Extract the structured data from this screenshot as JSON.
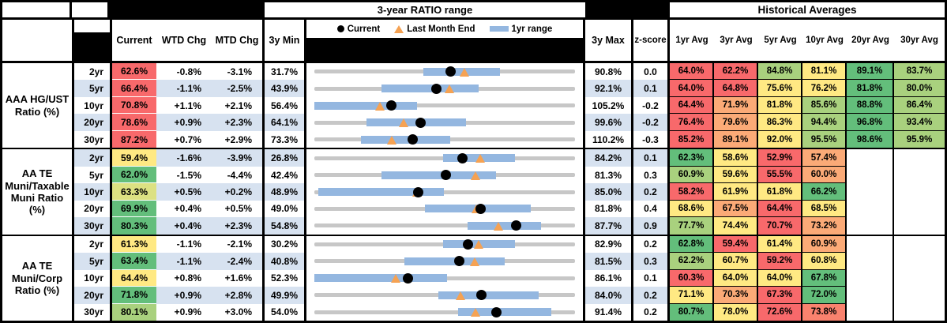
{
  "colors": {
    "rd": "#F8696B",
    "sa": "#F9826E",
    "or": "#FBAA77",
    "yl": "#FFE983",
    "yg": "#DCE182",
    "lg": "#A9D17E",
    "gr": "#63BE7B",
    "row_alt": "#D7E2F0",
    "bar_blue": "#94B7E0",
    "track_gray": "#C7C7C7",
    "marker_orange": "#F5A253"
  },
  "chart_data": {
    "type": "range-bullet-table",
    "range_header": "3-year RATIO range",
    "hist_header": "Historical Averages",
    "columns": [
      "Current",
      "WTD Chg",
      "MTD Chg",
      "3y Min",
      "3y Max",
      "z-score"
    ],
    "avg_columns": [
      "1yr Avg",
      "3yr Avg",
      "5yr Avg",
      "10yr Avg",
      "20yr Avg",
      "30yr Avg"
    ],
    "legend": {
      "current": "Current",
      "last_month": "Last Month End",
      "range": "1yr range"
    },
    "groups": [
      {
        "label_lines": [
          "AAA HG/UST",
          "Ratio (%)"
        ],
        "rows": [
          {
            "tenor": "2yr",
            "current": 62.6,
            "cc": "rd",
            "wtd": "-0.8%",
            "mtd": "-3.1%",
            "min": 31.7,
            "max": 90.8,
            "z": "0.0",
            "lme": 65.7,
            "bar": [
              56.5,
              73.7
            ],
            "avgs": [
              [
                64.0,
                "rd"
              ],
              [
                62.2,
                "rd"
              ],
              [
                84.8,
                "lg"
              ],
              [
                81.1,
                "yl"
              ],
              [
                89.1,
                "gr"
              ],
              [
                83.7,
                "lg"
              ]
            ]
          },
          {
            "tenor": "5yr",
            "current": 66.4,
            "cc": "rd",
            "wtd": "-1.1%",
            "mtd": "-2.5%",
            "min": 43.9,
            "max": 92.1,
            "z": "0.1",
            "lme": 68.9,
            "bar": [
              56.3,
              74.3
            ],
            "avgs": [
              [
                64.0,
                "rd"
              ],
              [
                64.8,
                "rd"
              ],
              [
                75.6,
                "yl"
              ],
              [
                76.2,
                "yl"
              ],
              [
                81.8,
                "gr"
              ],
              [
                80.0,
                "lg"
              ]
            ]
          },
          {
            "tenor": "10yr",
            "current": 70.8,
            "cc": "rd",
            "wtd": "+1.1%",
            "mtd": "+2.1%",
            "min": 56.4,
            "max": 105.2,
            "z": "-0.2",
            "lme": 68.7,
            "bar": [
              56.4,
              75.6
            ],
            "avgs": [
              [
                64.4,
                "rd"
              ],
              [
                71.9,
                "or"
              ],
              [
                81.8,
                "yl"
              ],
              [
                85.6,
                "lg"
              ],
              [
                88.8,
                "gr"
              ],
              [
                86.4,
                "lg"
              ]
            ]
          },
          {
            "tenor": "20yr",
            "current": 78.6,
            "cc": "rd",
            "wtd": "+0.9%",
            "mtd": "+2.3%",
            "min": 64.1,
            "max": 99.6,
            "z": "-0.2",
            "lme": 76.3,
            "bar": [
              71.2,
              84.8
            ],
            "avgs": [
              [
                76.4,
                "rd"
              ],
              [
                79.6,
                "or"
              ],
              [
                86.3,
                "yl"
              ],
              [
                94.4,
                "lg"
              ],
              [
                96.8,
                "gr"
              ],
              [
                93.4,
                "lg"
              ]
            ]
          },
          {
            "tenor": "30yr",
            "current": 87.2,
            "cc": "rd",
            "wtd": "+0.7%",
            "mtd": "+2.9%",
            "min": 73.3,
            "max": 110.2,
            "z": "-0.3",
            "lme": 84.3,
            "bar": [
              79.9,
              92.5
            ],
            "avgs": [
              [
                85.2,
                "rd"
              ],
              [
                89.1,
                "or"
              ],
              [
                92.0,
                "yl"
              ],
              [
                95.5,
                "lg"
              ],
              [
                98.6,
                "gr"
              ],
              [
                95.9,
                "lg"
              ]
            ]
          }
        ]
      },
      {
        "label_lines": [
          "AA TE",
          "Muni/Taxable",
          "Muni Ratio",
          "(%)"
        ],
        "rows": [
          {
            "tenor": "2yr",
            "current": 59.4,
            "cc": "yl",
            "wtd": "-1.6%",
            "mtd": "-3.9%",
            "min": 26.8,
            "max": 84.2,
            "z": "0.1",
            "lme": 63.3,
            "bar": [
              55.2,
              70.9
            ],
            "avgs": [
              [
                62.3,
                "gr"
              ],
              [
                58.6,
                "yl"
              ],
              [
                52.9,
                "rd"
              ],
              [
                57.4,
                "or"
              ],
              null,
              null
            ]
          },
          {
            "tenor": "5yr",
            "current": 62.0,
            "cc": "gr",
            "wtd": "-1.5%",
            "mtd": "-4.4%",
            "min": 42.4,
            "max": 81.3,
            "z": "0.3",
            "lme": 66.4,
            "bar": [
              52.4,
              69.5
            ],
            "avgs": [
              [
                60.9,
                "lg"
              ],
              [
                59.6,
                "yl"
              ],
              [
                55.5,
                "rd"
              ],
              [
                60.0,
                "or"
              ],
              null,
              null
            ]
          },
          {
            "tenor": "10yr",
            "current": 63.3,
            "cc": "yg",
            "wtd": "+0.5%",
            "mtd": "+0.2%",
            "min": 48.9,
            "max": 85.0,
            "z": "0.2",
            "lme": 63.1,
            "bar": [
              49.4,
              66.8
            ],
            "avgs": [
              [
                58.2,
                "rd"
              ],
              [
                61.9,
                "yl"
              ],
              [
                61.8,
                "yl"
              ],
              [
                66.2,
                "gr"
              ],
              null,
              null
            ]
          },
          {
            "tenor": "20yr",
            "current": 69.9,
            "cc": "gr",
            "wtd": "+0.4%",
            "mtd": "+0.5%",
            "min": 49.0,
            "max": 81.8,
            "z": "0.4",
            "lme": 69.4,
            "bar": [
              62.9,
              76.2
            ],
            "avgs": [
              [
                68.6,
                "yl"
              ],
              [
                67.5,
                "or"
              ],
              [
                64.4,
                "rd"
              ],
              [
                68.5,
                "yl"
              ],
              null,
              null
            ]
          },
          {
            "tenor": "30yr",
            "current": 80.3,
            "cc": "gr",
            "wtd": "+0.4%",
            "mtd": "+2.3%",
            "min": 54.8,
            "max": 87.7,
            "z": "0.9",
            "lme": 78.0,
            "bar": [
              74.1,
              83.4
            ],
            "avgs": [
              [
                77.7,
                "lg"
              ],
              [
                74.4,
                "yl"
              ],
              [
                70.7,
                "rd"
              ],
              [
                73.2,
                "or"
              ],
              null,
              null
            ]
          }
        ]
      },
      {
        "label_lines": [
          "AA TE",
          "Muni/Corp",
          "Ratio (%)"
        ],
        "rows": [
          {
            "tenor": "2yr",
            "current": 61.3,
            "cc": "yl",
            "wtd": "-1.1%",
            "mtd": "-2.1%",
            "min": 30.2,
            "max": 82.9,
            "z": "0.2",
            "lme": 63.4,
            "bar": [
              56.3,
              70.7
            ],
            "avgs": [
              [
                62.8,
                "gr"
              ],
              [
                59.4,
                "rd"
              ],
              [
                61.4,
                "yl"
              ],
              [
                60.9,
                "or"
              ],
              null,
              null
            ]
          },
          {
            "tenor": "5yr",
            "current": 63.4,
            "cc": "gr",
            "wtd": "-1.1%",
            "mtd": "-2.4%",
            "min": 40.8,
            "max": 81.5,
            "z": "0.3",
            "lme": 65.8,
            "bar": [
              54.8,
              70.5
            ],
            "avgs": [
              [
                62.2,
                "lg"
              ],
              [
                60.7,
                "yl"
              ],
              [
                59.2,
                "rd"
              ],
              [
                60.8,
                "yl"
              ],
              null,
              null
            ]
          },
          {
            "tenor": "10yr",
            "current": 64.4,
            "cc": "yl",
            "wtd": "+0.8%",
            "mtd": "+1.6%",
            "min": 52.3,
            "max": 86.1,
            "z": "0.1",
            "lme": 62.8,
            "bar": [
              52.3,
              69.5
            ],
            "avgs": [
              [
                60.3,
                "rd"
              ],
              [
                64.0,
                "yl"
              ],
              [
                64.0,
                "yl"
              ],
              [
                67.8,
                "gr"
              ],
              null,
              null
            ]
          },
          {
            "tenor": "20yr",
            "current": 71.8,
            "cc": "gr",
            "wtd": "+0.9%",
            "mtd": "+2.8%",
            "min": 49.9,
            "max": 84.0,
            "z": "0.2",
            "lme": 69.0,
            "bar": [
              66.1,
              79.2
            ],
            "avgs": [
              [
                71.1,
                "yl"
              ],
              [
                70.3,
                "or"
              ],
              [
                67.3,
                "rd"
              ],
              [
                72.0,
                "gr"
              ],
              null,
              null
            ]
          },
          {
            "tenor": "30yr",
            "current": 80.1,
            "cc": "lg",
            "wtd": "+0.9%",
            "mtd": "+3.0%",
            "min": 54.0,
            "max": 91.4,
            "z": "0.2",
            "lme": 77.1,
            "bar": [
              74.6,
              88.0
            ],
            "avgs": [
              [
                80.7,
                "gr"
              ],
              [
                78.0,
                "yl"
              ],
              [
                72.6,
                "rd"
              ],
              [
                73.8,
                "sa"
              ],
              null,
              null
            ]
          }
        ]
      }
    ]
  }
}
